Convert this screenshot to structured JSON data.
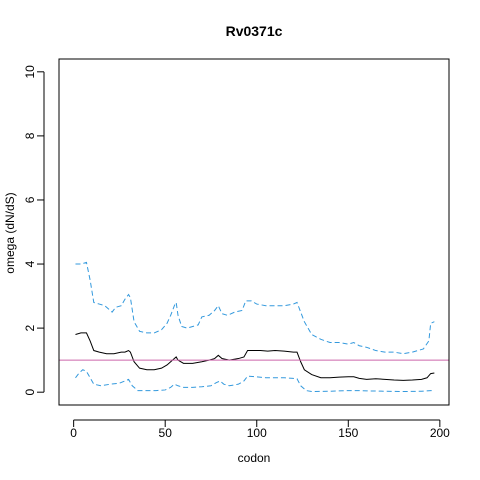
{
  "chart_data": {
    "type": "line",
    "title": "Rv0371c",
    "xlabel": "codon",
    "ylabel": "omega (dN/dS)",
    "xlim": [
      -8,
      205
    ],
    "ylim": [
      -0.4,
      10.4
    ],
    "x_ticks": [
      0,
      50,
      100,
      150,
      200
    ],
    "y_ticks": [
      0,
      2,
      4,
      6,
      8,
      10
    ],
    "x_tick_labels": [
      "0",
      "50",
      "100",
      "150",
      "200"
    ],
    "y_tick_labels": [
      "0",
      "2",
      "4",
      "6",
      "8",
      "10"
    ],
    "reference_line": {
      "y": 1,
      "color": "#cc66aa"
    },
    "grid": false,
    "series": [
      {
        "role": "upper",
        "style": "dashed",
        "color": "#3399dd",
        "points": [
          [
            1,
            4.0
          ],
          [
            4,
            4.0
          ],
          [
            7,
            4.05
          ],
          [
            9,
            3.5
          ],
          [
            11,
            2.8
          ],
          [
            14,
            2.75
          ],
          [
            17,
            2.7
          ],
          [
            19,
            2.6
          ],
          [
            21,
            2.5
          ],
          [
            23,
            2.65
          ],
          [
            26,
            2.7
          ],
          [
            28,
            2.9
          ],
          [
            30,
            3.05
          ],
          [
            31,
            2.95
          ],
          [
            33,
            2.2
          ],
          [
            36,
            1.9
          ],
          [
            40,
            1.85
          ],
          [
            44,
            1.85
          ],
          [
            48,
            1.95
          ],
          [
            51,
            2.15
          ],
          [
            53,
            2.4
          ],
          [
            55,
            2.7
          ],
          [
            56,
            2.8
          ],
          [
            57,
            2.4
          ],
          [
            59,
            2.05
          ],
          [
            62,
            2.0
          ],
          [
            65,
            2.05
          ],
          [
            68,
            2.1
          ],
          [
            70,
            2.35
          ],
          [
            74,
            2.4
          ],
          [
            77,
            2.55
          ],
          [
            79,
            2.7
          ],
          [
            81,
            2.45
          ],
          [
            84,
            2.4
          ],
          [
            88,
            2.5
          ],
          [
            92,
            2.55
          ],
          [
            94,
            2.85
          ],
          [
            97,
            2.85
          ],
          [
            100,
            2.75
          ],
          [
            105,
            2.7
          ],
          [
            110,
            2.7
          ],
          [
            115,
            2.7
          ],
          [
            120,
            2.75
          ],
          [
            122,
            2.8
          ],
          [
            124,
            2.5
          ],
          [
            126,
            2.2
          ],
          [
            130,
            1.8
          ],
          [
            135,
            1.65
          ],
          [
            140,
            1.55
          ],
          [
            145,
            1.55
          ],
          [
            150,
            1.5
          ],
          [
            153,
            1.55
          ],
          [
            156,
            1.45
          ],
          [
            160,
            1.4
          ],
          [
            165,
            1.3
          ],
          [
            170,
            1.25
          ],
          [
            175,
            1.25
          ],
          [
            180,
            1.2
          ],
          [
            185,
            1.25
          ],
          [
            188,
            1.3
          ],
          [
            191,
            1.35
          ],
          [
            194,
            1.6
          ],
          [
            195,
            2.15
          ],
          [
            197,
            2.2
          ]
        ]
      },
      {
        "role": "estimate",
        "style": "solid",
        "color": "#000000",
        "points": [
          [
            1,
            1.8
          ],
          [
            4,
            1.85
          ],
          [
            7,
            1.85
          ],
          [
            9,
            1.6
          ],
          [
            11,
            1.3
          ],
          [
            14,
            1.25
          ],
          [
            18,
            1.2
          ],
          [
            22,
            1.2
          ],
          [
            26,
            1.25
          ],
          [
            28,
            1.25
          ],
          [
            30,
            1.3
          ],
          [
            31,
            1.25
          ],
          [
            33,
            0.95
          ],
          [
            36,
            0.75
          ],
          [
            40,
            0.7
          ],
          [
            44,
            0.7
          ],
          [
            48,
            0.75
          ],
          [
            51,
            0.85
          ],
          [
            53,
            0.95
          ],
          [
            55,
            1.05
          ],
          [
            56,
            1.1
          ],
          [
            57,
            1.0
          ],
          [
            60,
            0.9
          ],
          [
            65,
            0.9
          ],
          [
            70,
            0.95
          ],
          [
            74,
            1.0
          ],
          [
            77,
            1.05
          ],
          [
            79,
            1.15
          ],
          [
            81,
            1.05
          ],
          [
            85,
            1.0
          ],
          [
            90,
            1.05
          ],
          [
            93,
            1.1
          ],
          [
            95,
            1.3
          ],
          [
            98,
            1.3
          ],
          [
            102,
            1.3
          ],
          [
            106,
            1.28
          ],
          [
            110,
            1.3
          ],
          [
            115,
            1.28
          ],
          [
            120,
            1.25
          ],
          [
            122,
            1.25
          ],
          [
            124,
            0.95
          ],
          [
            126,
            0.7
          ],
          [
            130,
            0.55
          ],
          [
            135,
            0.45
          ],
          [
            140,
            0.45
          ],
          [
            145,
            0.47
          ],
          [
            150,
            0.48
          ],
          [
            153,
            0.48
          ],
          [
            156,
            0.43
          ],
          [
            160,
            0.4
          ],
          [
            165,
            0.42
          ],
          [
            170,
            0.4
          ],
          [
            175,
            0.38
          ],
          [
            180,
            0.37
          ],
          [
            185,
            0.38
          ],
          [
            190,
            0.4
          ],
          [
            193,
            0.45
          ],
          [
            195,
            0.58
          ],
          [
            197,
            0.6
          ]
        ]
      },
      {
        "role": "lower",
        "style": "dashed",
        "color": "#3399dd",
        "points": [
          [
            1,
            0.45
          ],
          [
            3,
            0.6
          ],
          [
            5,
            0.7
          ],
          [
            7,
            0.65
          ],
          [
            9,
            0.45
          ],
          [
            11,
            0.25
          ],
          [
            15,
            0.2
          ],
          [
            20,
            0.25
          ],
          [
            25,
            0.28
          ],
          [
            28,
            0.35
          ],
          [
            30,
            0.4
          ],
          [
            32,
            0.2
          ],
          [
            35,
            0.05
          ],
          [
            40,
            0.05
          ],
          [
            45,
            0.05
          ],
          [
            50,
            0.07
          ],
          [
            53,
            0.15
          ],
          [
            55,
            0.25
          ],
          [
            57,
            0.2
          ],
          [
            60,
            0.15
          ],
          [
            65,
            0.15
          ],
          [
            70,
            0.17
          ],
          [
            75,
            0.2
          ],
          [
            78,
            0.3
          ],
          [
            80,
            0.35
          ],
          [
            82,
            0.25
          ],
          [
            85,
            0.2
          ],
          [
            90,
            0.25
          ],
          [
            93,
            0.35
          ],
          [
            95,
            0.5
          ],
          [
            100,
            0.48
          ],
          [
            105,
            0.45
          ],
          [
            110,
            0.45
          ],
          [
            115,
            0.45
          ],
          [
            120,
            0.43
          ],
          [
            122,
            0.42
          ],
          [
            124,
            0.2
          ],
          [
            127,
            0.05
          ],
          [
            130,
            0.02
          ],
          [
            140,
            0.03
          ],
          [
            150,
            0.05
          ],
          [
            155,
            0.05
          ],
          [
            160,
            0.04
          ],
          [
            170,
            0.03
          ],
          [
            180,
            0.02
          ],
          [
            190,
            0.03
          ],
          [
            195,
            0.05
          ],
          [
            197,
            0.05
          ]
        ]
      }
    ]
  }
}
